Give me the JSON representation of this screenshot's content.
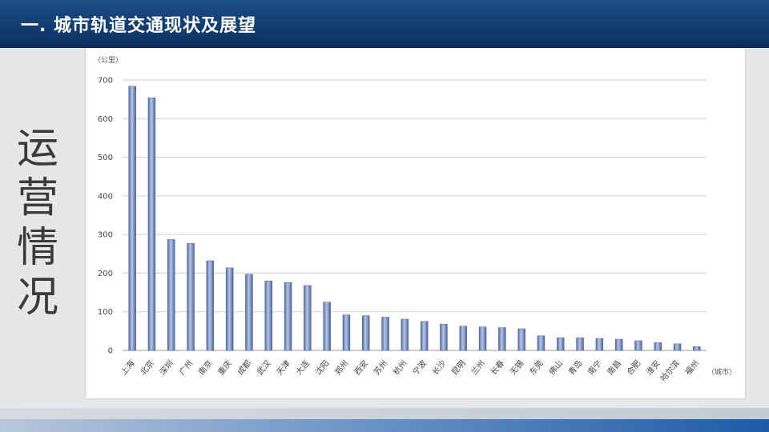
{
  "header": {
    "title": "一. 城市轨道交通现状及展望"
  },
  "side_label": [
    "运",
    "营",
    "情",
    "况"
  ],
  "chart_data": {
    "type": "bar",
    "title": "",
    "ylabel": "（公里）",
    "xlabel": "（城市）",
    "ylim": [
      0,
      700
    ],
    "yticks": [
      0,
      100,
      200,
      300,
      400,
      500,
      600,
      700
    ],
    "grid": true,
    "categories": [
      "上海",
      "北京",
      "深圳",
      "广州",
      "南京",
      "重庆",
      "成都",
      "武汉",
      "天津",
      "大连",
      "沈阳",
      "郑州",
      "西安",
      "苏州",
      "杭州",
      "宁波",
      "长沙",
      "昆明",
      "兰州",
      "长春",
      "无锡",
      "东莞",
      "佛山",
      "青岛",
      "南宁",
      "南昌",
      "合肥",
      "淮安",
      "哈尔滨",
      "福州"
    ],
    "values": [
      684,
      654,
      287,
      277,
      232,
      214,
      197,
      180,
      176,
      168,
      125,
      92,
      90,
      86,
      81,
      75,
      68,
      63,
      61,
      59,
      56,
      38,
      33,
      33,
      31,
      29,
      25,
      20,
      17,
      10
    ]
  }
}
